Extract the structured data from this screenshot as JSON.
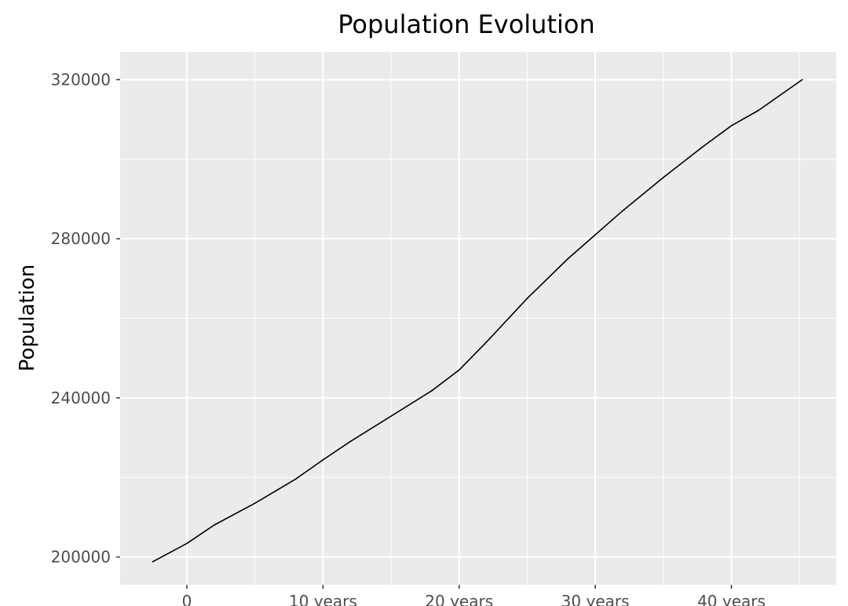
{
  "chart_data": {
    "type": "line",
    "title": "Population Evolution",
    "xlabel": "",
    "ylabel": "Population",
    "xlim": [
      -4.9,
      47.7
    ],
    "ylim": [
      193000,
      327000
    ],
    "x_major_ticks": [
      0,
      10,
      20,
      30,
      40
    ],
    "x_tick_labels": [
      "0",
      "10 years",
      "20 years",
      "30 years",
      "40 years"
    ],
    "x_minor_ticks": [
      5,
      15,
      25,
      35,
      45
    ],
    "y_major_ticks": [
      200000,
      240000,
      280000,
      320000
    ],
    "y_tick_labels": [
      "200000",
      "240000",
      "280000",
      "320000"
    ],
    "y_minor_ticks": [
      220000,
      260000,
      300000
    ],
    "grid": true,
    "colors": {
      "panel": "#ebebeb",
      "grid": "#ffffff",
      "line": "#000000"
    },
    "series": [
      {
        "x": [
          -2.5,
          0,
          2,
          5,
          8,
          10,
          12,
          15,
          18,
          20,
          22,
          25,
          28,
          30,
          32,
          35,
          38,
          40,
          42,
          45.2
        ],
        "values": [
          198800,
          203400,
          208000,
          213500,
          219600,
          224400,
          229000,
          235400,
          241800,
          247000,
          254000,
          265000,
          275000,
          281000,
          287000,
          295400,
          303400,
          308400,
          312300,
          320000
        ]
      }
    ]
  }
}
